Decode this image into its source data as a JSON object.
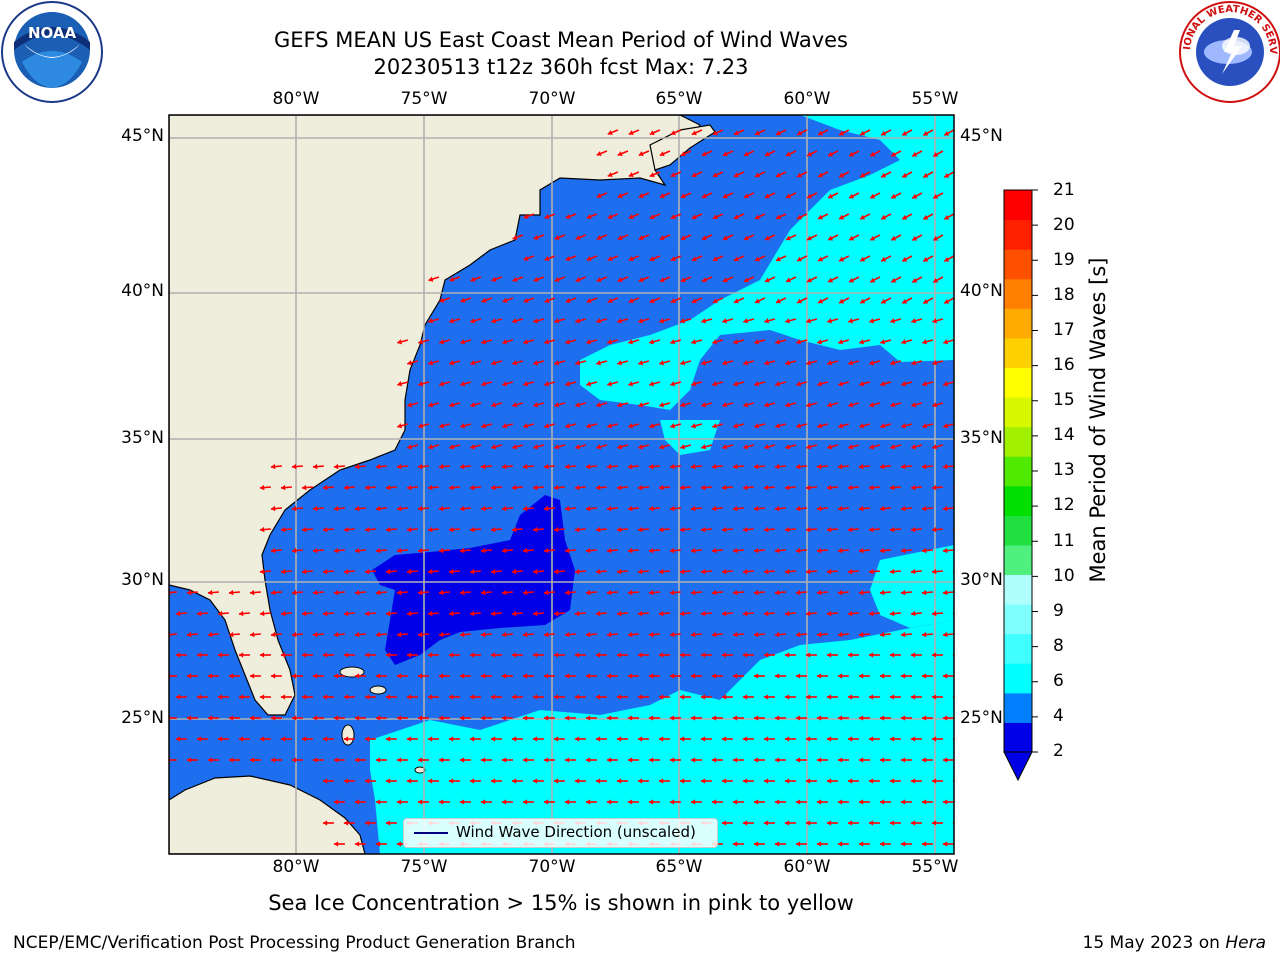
{
  "title": {
    "line1": "GEFS MEAN US East Coast Mean Period of Wind Waves",
    "line2": "20230513 t12z 360h fcst   Max: 7.23"
  },
  "map": {
    "lon_labels": [
      "80°W",
      "75°W",
      "70°W",
      "65°W",
      "60°W",
      "55°W"
    ],
    "lat_labels": [
      "45°N",
      "40°N",
      "35°N",
      "30°N",
      "25°N"
    ],
    "legend_text": "Wind Wave Direction (unscaled)",
    "arrow_color": "#ff0000",
    "land_color": "#efeddc",
    "grid_color": "#b0b0b0"
  },
  "colorbar": {
    "label": "Mean Period of Wind Waves [s]",
    "ticks": [
      "21",
      "20",
      "19",
      "18",
      "17",
      "16",
      "15",
      "14",
      "13",
      "12",
      "11",
      "10",
      "9",
      "8",
      "6",
      "4",
      "2"
    ],
    "colors": [
      "#0000e6",
      "#0080ff",
      "#00ffff",
      "#40ffff",
      "#80ffff",
      "#b0ffff",
      "#50f080",
      "#20e040",
      "#00e000",
      "#50ea00",
      "#a0f000",
      "#d8f800",
      "#ffff00",
      "#ffd000",
      "#ffaa00",
      "#ff8000",
      "#ff5000",
      "#ff2000",
      "#ff0000"
    ]
  },
  "bottom_note": "Sea Ice Concentration > 15% is shown in pink to yellow",
  "footer": {
    "left": "NCEP/EMC/Verification Post Processing Product Generation Branch",
    "date": "15 May 2023 on ",
    "machine": "Hera"
  },
  "logos": {
    "noaa_text": "NOAA",
    "nws_text": "NATIONAL WEATHER SERVICE"
  }
}
